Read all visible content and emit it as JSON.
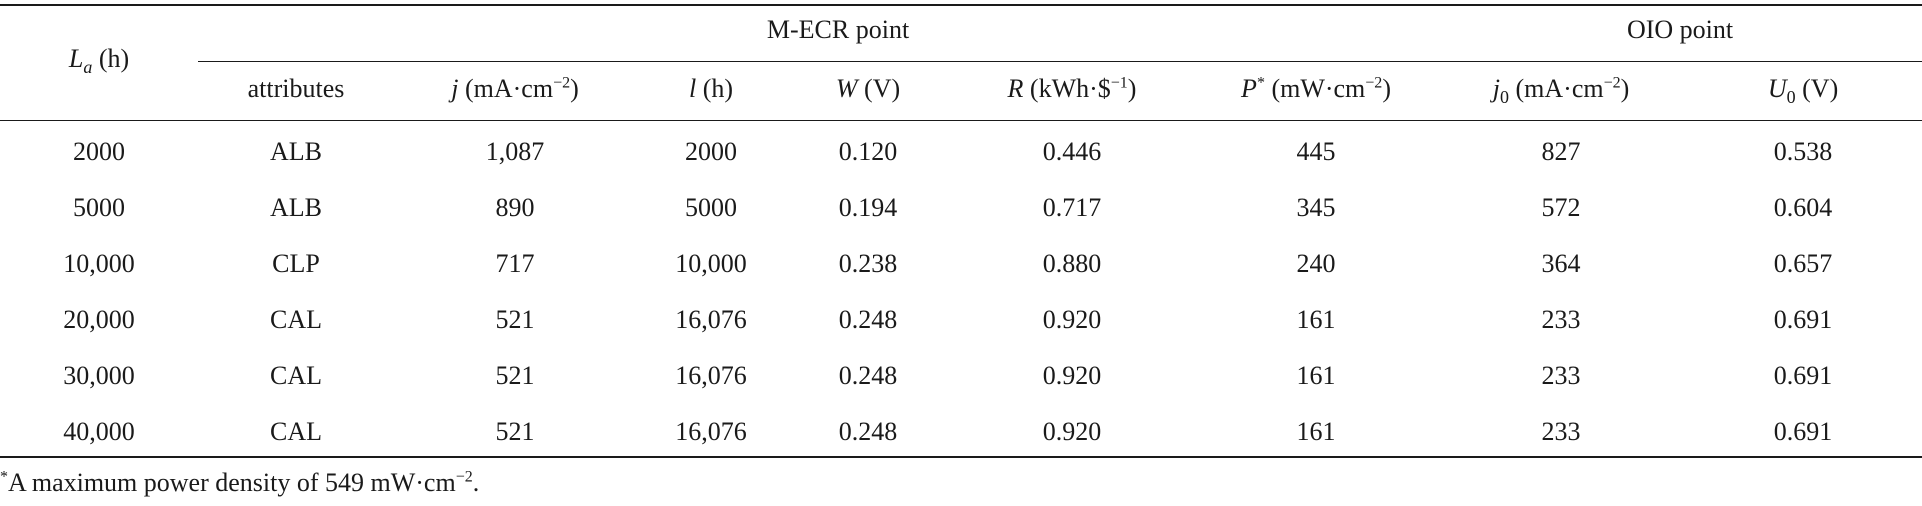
{
  "header": {
    "la_label": "(h)",
    "mecr_group": "M-ECR point",
    "oio_group": "OIO point",
    "attributes": "attributes",
    "j_unit": "(mA·cm",
    "j_exp": "−2",
    "l_unit": "(h)",
    "w_unit": "(V)",
    "r_unit": "(kWh·$",
    "r_exp": "−1",
    "p_unit": "(mW·cm",
    "p_exp": "−2",
    "j0_unit": "(mA·cm",
    "j0_exp": "−2",
    "u0_unit": "(V)"
  },
  "rows": [
    {
      "la": "2000",
      "attr": "ALB",
      "j": "1,087",
      "l": "2000",
      "w": "0.120",
      "r": "0.446",
      "p": "445",
      "j0": "827",
      "u0": "0.538"
    },
    {
      "la": "5000",
      "attr": "ALB",
      "j": "890",
      "l": "5000",
      "w": "0.194",
      "r": "0.717",
      "p": "345",
      "j0": "572",
      "u0": "0.604"
    },
    {
      "la": "10,000",
      "attr": "CLP",
      "j": "717",
      "l": "10,000",
      "w": "0.238",
      "r": "0.880",
      "p": "240",
      "j0": "364",
      "u0": "0.657"
    },
    {
      "la": "20,000",
      "attr": "CAL",
      "j": "521",
      "l": "16,076",
      "w": "0.248",
      "r": "0.920",
      "p": "161",
      "j0": "233",
      "u0": "0.691"
    },
    {
      "la": "30,000",
      "attr": "CAL",
      "j": "521",
      "l": "16,076",
      "w": "0.248",
      "r": "0.920",
      "p": "161",
      "j0": "233",
      "u0": "0.691"
    },
    {
      "la": "40,000",
      "attr": "CAL",
      "j": "521",
      "l": "16,076",
      "w": "0.248",
      "r": "0.920",
      "p": "161",
      "j0": "233",
      "u0": "0.691"
    }
  ],
  "footnote": {
    "text": "A maximum power density of 549 mW·cm",
    "exp": "−2",
    "end": "."
  }
}
